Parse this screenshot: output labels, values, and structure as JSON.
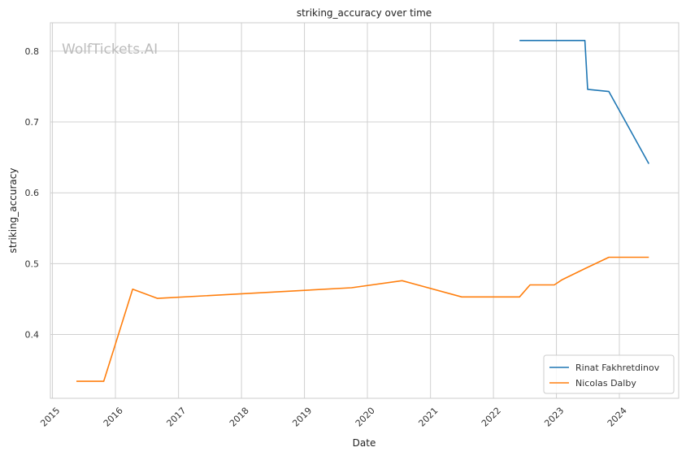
{
  "watermark": "WolfTickets.AI",
  "chart_data": {
    "type": "line",
    "title": "striking_accuracy over time",
    "xlabel": "Date",
    "ylabel": "striking_accuracy",
    "x_axis_type": "date",
    "xlim": [
      "2014-12-20",
      "2024-12-10"
    ],
    "ylim": [
      0.31,
      0.84
    ],
    "x_ticks": [
      "2015",
      "2016",
      "2017",
      "2018",
      "2019",
      "2020",
      "2021",
      "2022",
      "2023",
      "2024"
    ],
    "y_ticks": [
      "0.4",
      "0.5",
      "0.6",
      "0.7",
      "0.8"
    ],
    "grid": true,
    "legend_position": "bottom-right",
    "series": [
      {
        "name": "Rinat Fakhretdinov",
        "color": "#1f77b4",
        "points": [
          {
            "x": "2022-06-01",
            "y": 0.815
          },
          {
            "x": "2023-06-15",
            "y": 0.815
          },
          {
            "x": "2023-07-01",
            "y": 0.746
          },
          {
            "x": "2023-11-01",
            "y": 0.743
          },
          {
            "x": "2024-06-20",
            "y": 0.641
          }
        ]
      },
      {
        "name": "Nicolas Dalby",
        "color": "#ff7f0e",
        "points": [
          {
            "x": "2015-05-20",
            "y": 0.334
          },
          {
            "x": "2015-10-25",
            "y": 0.334
          },
          {
            "x": "2016-04-10",
            "y": 0.464
          },
          {
            "x": "2016-09-01",
            "y": 0.451
          },
          {
            "x": "2019-10-01",
            "y": 0.466
          },
          {
            "x": "2020-07-20",
            "y": 0.476
          },
          {
            "x": "2021-07-01",
            "y": 0.453
          },
          {
            "x": "2022-06-01",
            "y": 0.453
          },
          {
            "x": "2022-08-01",
            "y": 0.47
          },
          {
            "x": "2022-12-20",
            "y": 0.47
          },
          {
            "x": "2023-02-01",
            "y": 0.477
          },
          {
            "x": "2023-06-15",
            "y": 0.493
          },
          {
            "x": "2023-11-01",
            "y": 0.509
          },
          {
            "x": "2024-06-20",
            "y": 0.509
          }
        ]
      }
    ]
  }
}
